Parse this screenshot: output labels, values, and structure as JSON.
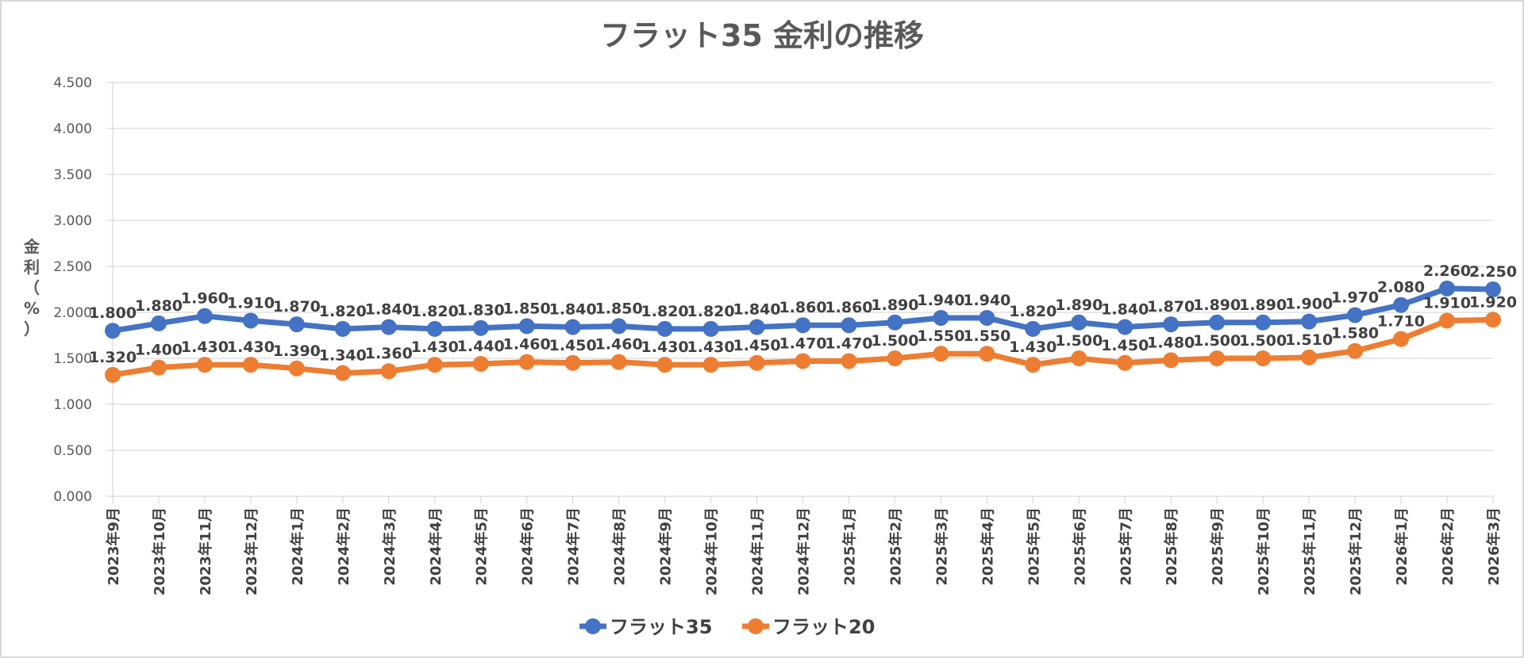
{
  "chart_data": {
    "type": "line",
    "title": "フラット35 金利の推移",
    "ylabel": "金利（%）",
    "xlabel": "",
    "ylim": [
      0,
      4.5
    ],
    "yticks": [
      "0.000",
      "0.500",
      "1.000",
      "1.500",
      "2.000",
      "2.500",
      "3.000",
      "3.500",
      "4.000",
      "4.500"
    ],
    "grid": true,
    "legend": "bottom",
    "categories": [
      "2023年9月",
      "2023年10月",
      "2023年11月",
      "2023年12月",
      "2024年1月",
      "2024年2月",
      "2024年3月",
      "2024年4月",
      "2024年5月",
      "2024年6月",
      "2024年7月",
      "2024年8月",
      "2024年9月",
      "2024年10月",
      "2024年11月",
      "2024年12月",
      "2025年1月",
      "2025年2月",
      "2025年3月",
      "2025年4月",
      "2025年5月",
      "2025年6月",
      "2025年7月",
      "2025年8月",
      "2025年9月",
      "2025年10月",
      "2025年11月",
      "2025年12月",
      "2026年1月",
      "2026年2月",
      "2026年3月"
    ],
    "series": [
      {
        "name": "フラット35",
        "color": "#4472C4",
        "values": [
          1.8,
          1.88,
          1.96,
          1.91,
          1.87,
          1.82,
          1.84,
          1.82,
          1.83,
          1.85,
          1.84,
          1.85,
          1.82,
          1.82,
          1.84,
          1.86,
          1.86,
          1.89,
          1.94,
          1.94,
          1.82,
          1.89,
          1.84,
          1.87,
          1.89,
          1.89,
          1.9,
          1.97,
          2.08,
          2.26,
          2.25
        ]
      },
      {
        "name": "フラット20",
        "color": "#ED7D31",
        "values": [
          1.32,
          1.4,
          1.43,
          1.43,
          1.39,
          1.34,
          1.36,
          1.43,
          1.44,
          1.46,
          1.45,
          1.46,
          1.43,
          1.43,
          1.45,
          1.47,
          1.47,
          1.5,
          1.55,
          1.55,
          1.43,
          1.5,
          1.45,
          1.48,
          1.5,
          1.5,
          1.51,
          1.58,
          1.71,
          1.91,
          1.92
        ]
      }
    ]
  }
}
